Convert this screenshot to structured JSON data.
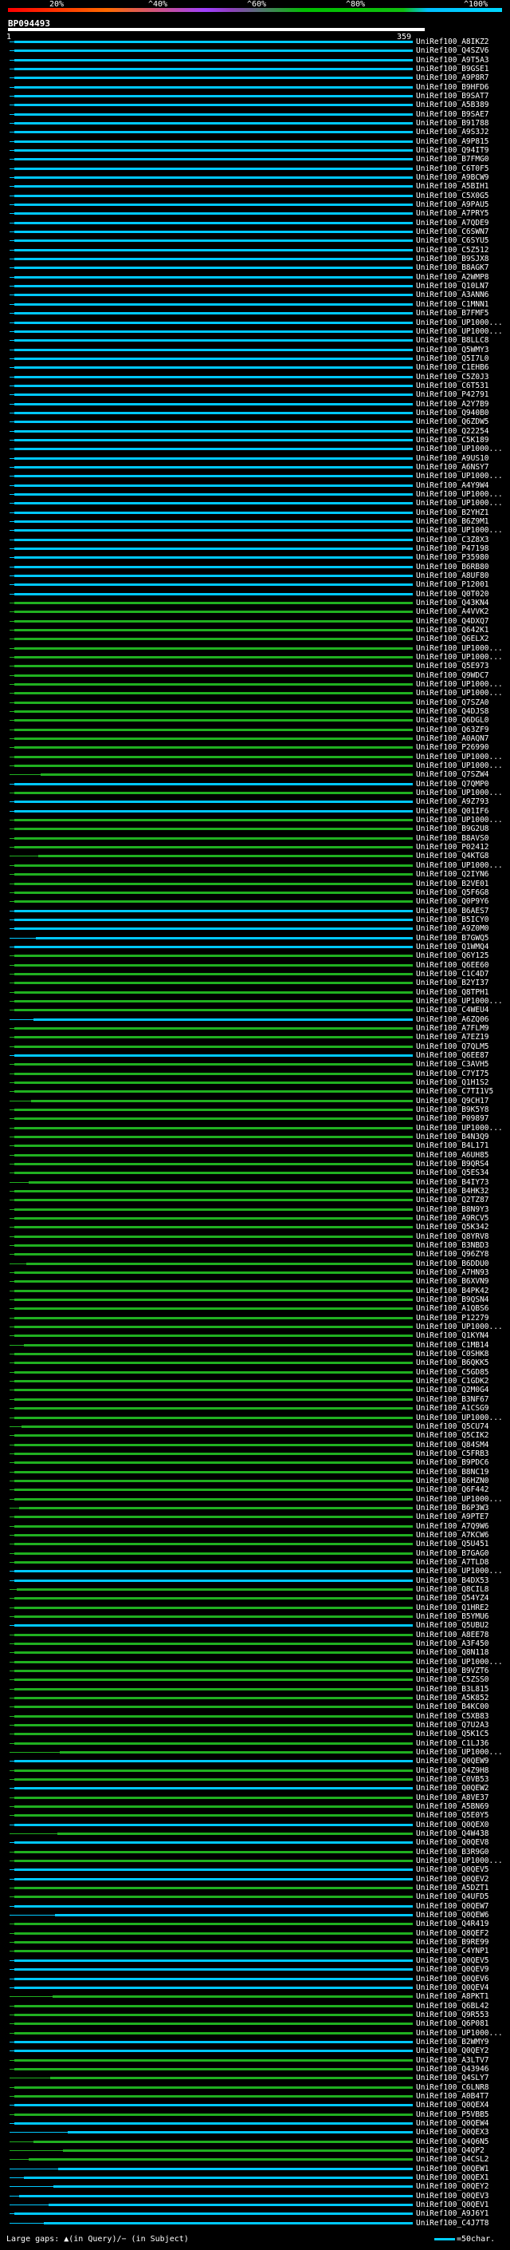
{
  "header": {
    "pct_labels": [
      "20%",
      "^40%",
      "^60%",
      "^80%",
      "^100%"
    ],
    "query_id": "BP094493",
    "tick_start": "1",
    "tick_end": "359"
  },
  "legend": {
    "text": "Large gaps: ▲(in Query)/− (in Subject)",
    "scale": "=50char."
  },
  "colors": {
    "cyan": "#00c8ff",
    "green": "#20b020"
  },
  "hits": [
    [
      "UniRef100_A8IKZ2",
      "c"
    ],
    [
      "UniRef100_Q4SZV6",
      "c"
    ],
    [
      "UniRef100_A9T5A3",
      "c"
    ],
    [
      "UniRef100_B9GSE1",
      "c"
    ],
    [
      "UniRef100_A9P8R7",
      "c"
    ],
    [
      "UniRef100_B9HFD6",
      "c"
    ],
    [
      "UniRef100_B9SAT7",
      "c"
    ],
    [
      "UniRef100_A5B389",
      "c"
    ],
    [
      "UniRef100_B9SAE7",
      "c"
    ],
    [
      "UniRef100_B91788",
      "c"
    ],
    [
      "UniRef100_A9S3J2",
      "c"
    ],
    [
      "UniRef100_A9P815",
      "c"
    ],
    [
      "UniRef100_Q94IT9",
      "c"
    ],
    [
      "UniRef100_B7FMG0",
      "c"
    ],
    [
      "UniRef100_C6T0F5",
      "c"
    ],
    [
      "UniRef100_A9BCW9",
      "c"
    ],
    [
      "UniRef100_A5BIH1",
      "c"
    ],
    [
      "UniRef100_C5X0G5",
      "c"
    ],
    [
      "UniRef100_A9PAU5",
      "c"
    ],
    [
      "UniRef100_A7PRY5",
      "c"
    ],
    [
      "UniRef100_A7QDE9",
      "c"
    ],
    [
      "UniRef100_C6SWN7",
      "c"
    ],
    [
      "UniRef100_C6SYU5",
      "c"
    ],
    [
      "UniRef100_C5Z512",
      "c"
    ],
    [
      "UniRef100_B9SJX8",
      "c"
    ],
    [
      "UniRef100_B8AGK7",
      "c"
    ],
    [
      "UniRef100_A2WMP8",
      "c"
    ],
    [
      "UniRef100_Q10LN7",
      "c"
    ],
    [
      "UniRef100_A3ANN6",
      "c"
    ],
    [
      "UniRef100_C1MNN1",
      "c"
    ],
    [
      "UniRef100_B7FMF5",
      "c"
    ],
    [
      "UniRef100_UP1000...",
      "c"
    ],
    [
      "UniRef100_UP1000...",
      "c"
    ],
    [
      "UniRef100_B8LLC8",
      "c"
    ],
    [
      "UniRef100_Q5WMY3",
      "c"
    ],
    [
      "UniRef100_Q5I7L0",
      "c"
    ],
    [
      "UniRef100_C1EHB6",
      "c"
    ],
    [
      "UniRef100_C5Z0J3",
      "c"
    ],
    [
      "UniRef100_C6T531",
      "c"
    ],
    [
      "UniRef100_P42791",
      "c"
    ],
    [
      "UniRef100_A2Y7B9",
      "c"
    ],
    [
      "UniRef100_Q940B0",
      "c"
    ],
    [
      "UniRef100_Q6ZDW5",
      "c"
    ],
    [
      "UniRef100_Q22254",
      "c"
    ],
    [
      "UniRef100_C5K189",
      "c"
    ],
    [
      "UniRef100_UP1000...",
      "c"
    ],
    [
      "UniRef100_A9US10",
      "c"
    ],
    [
      "UniRef100_A6NSY7",
      "c"
    ],
    [
      "UniRef100_UP1000...",
      "c"
    ],
    [
      "UniRef100_A4Y9W4",
      "c"
    ],
    [
      "UniRef100_UP1000...",
      "c"
    ],
    [
      "UniRef100_UP1000...",
      "c"
    ],
    [
      "UniRef100_B2YHZ1",
      "c"
    ],
    [
      "UniRef100_B6Z9M1",
      "c"
    ],
    [
      "UniRef100_UP1000...",
      "c"
    ],
    [
      "UniRef100_C3Z8X3",
      "c"
    ],
    [
      "UniRef100_P47198",
      "c"
    ],
    [
      "UniRef100_P35980",
      "c"
    ],
    [
      "UniRef100_B6RB80",
      "c"
    ],
    [
      "UniRef100_A8UF80",
      "c"
    ],
    [
      "UniRef100_P12001",
      "c"
    ],
    [
      "UniRef100_Q0T020",
      "c"
    ],
    [
      "UniRef100_Q43KN4",
      "g"
    ],
    [
      "UniRef100_A4VVK2",
      "g"
    ],
    [
      "UniRef100_Q4DXQ7",
      "g"
    ],
    [
      "UniRef100_Q642K1",
      "g"
    ],
    [
      "UniRef100_Q6ELX2",
      "g"
    ],
    [
      "UniRef100_UP1000...",
      "g"
    ],
    [
      "UniRef100_UP1000...",
      "g"
    ],
    [
      "UniRef100_Q5E973",
      "g"
    ],
    [
      "UniRef100_Q9WDC7",
      "g"
    ],
    [
      "UniRef100_UP1000...",
      "g"
    ],
    [
      "UniRef100_UP1000...",
      "g"
    ],
    [
      "UniRef100_Q7SZA0",
      "g"
    ],
    [
      "UniRef100_Q4DJS8",
      "g"
    ],
    [
      "UniRef100_Q6DGL0",
      "g"
    ],
    [
      "UniRef100_Q63ZF9",
      "g"
    ],
    [
      "UniRef100_A0AQN7",
      "g"
    ],
    [
      "UniRef100_P26990",
      "g"
    ],
    [
      "UniRef100_UP1000...",
      "g"
    ],
    [
      "UniRef100_UP1000...",
      "g"
    ],
    [
      "UniRef100_Q7SZW4",
      "g"
    ],
    [
      "UniRef100_Q7QMP0",
      "c"
    ],
    [
      "UniRef100_UP1000...",
      "g"
    ],
    [
      "UniRef100_A9Z793",
      "c"
    ],
    [
      "UniRef100_Q01IF6",
      "c"
    ],
    [
      "UniRef100_UP1000...",
      "g"
    ],
    [
      "UniRef100_B9G2U8",
      "g"
    ],
    [
      "UniRef100_B8AVS0",
      "g"
    ],
    [
      "UniRef100_P02412",
      "g"
    ],
    [
      "UniRef100_Q4KTG8",
      "g"
    ],
    [
      "UniRef100_UP1000...",
      "g"
    ],
    [
      "UniRef100_Q2IYN6",
      "g"
    ],
    [
      "UniRef100_B2VE01",
      "g"
    ],
    [
      "UniRef100_Q5F6G8",
      "g"
    ],
    [
      "UniRef100_Q0P9Y6",
      "g"
    ],
    [
      "UniRef100_B6AES7",
      "c"
    ],
    [
      "UniRef100_B5ICY0",
      "c"
    ],
    [
      "UniRef100_A9Z0M0",
      "c"
    ],
    [
      "UniRef100_B7GWQ5",
      "c"
    ],
    [
      "UniRef100_Q1WMQ4",
      "c"
    ],
    [
      "UniRef100_Q6Y125",
      "g"
    ],
    [
      "UniRef100_Q6EE60",
      "g"
    ],
    [
      "UniRef100_C1C4D7",
      "g"
    ],
    [
      "UniRef100_B2YI37",
      "g"
    ],
    [
      "UniRef100_Q8TPH1",
      "g"
    ],
    [
      "UniRef100_UP1000...",
      "g"
    ],
    [
      "UniRef100_C4WEU4",
      "g"
    ],
    [
      "UniRef100_A6ZQ06",
      "c"
    ],
    [
      "UniRef100_A7FLM9",
      "g"
    ],
    [
      "UniRef100_A7EZ19",
      "g"
    ],
    [
      "UniRef100_Q7QLM5",
      "g"
    ],
    [
      "UniRef100_Q6EE87",
      "c"
    ],
    [
      "UniRef100_C3AVH5",
      "g"
    ],
    [
      "UniRef100_C7YI75",
      "g"
    ],
    [
      "UniRef100_Q1H1S2",
      "g"
    ],
    [
      "UniRef100_C7TI1V5",
      "g"
    ],
    [
      "UniRef100_Q9CH17",
      "g"
    ],
    [
      "UniRef100_B9K5Y8",
      "g"
    ],
    [
      "UniRef100_P09897",
      "g"
    ],
    [
      "UniRef100_UP1000...",
      "g"
    ],
    [
      "UniRef100_B4N3Q9",
      "g"
    ],
    [
      "UniRef100_B4L171",
      "g"
    ],
    [
      "UniRef100_A6UH85",
      "g"
    ],
    [
      "UniRef100_B9QRS4",
      "g"
    ],
    [
      "UniRef100_Q5ES34",
      "g"
    ],
    [
      "UniRef100_B4IY73",
      "g"
    ],
    [
      "UniRef100_B4HK32",
      "g"
    ],
    [
      "UniRef100_Q2TZ87",
      "g"
    ],
    [
      "UniRef100_B8N9Y3",
      "g"
    ],
    [
      "UniRef100_A9RCV5",
      "g"
    ],
    [
      "UniRef100_Q5K342",
      "g"
    ],
    [
      "UniRef100_Q8YRV8",
      "g"
    ],
    [
      "UniRef100_B3NBD3",
      "g"
    ],
    [
      "UniRef100_Q96ZY8",
      "g"
    ],
    [
      "UniRef100_B6DDU0",
      "g"
    ],
    [
      "UniRef100_A7HN93",
      "g"
    ],
    [
      "UniRef100_B6XVN9",
      "g"
    ],
    [
      "UniRef100_B4PK42",
      "g"
    ],
    [
      "UniRef100_B9QSN4",
      "g"
    ],
    [
      "UniRef100_A1QBS6",
      "g"
    ],
    [
      "UniRef100_P12279",
      "g"
    ],
    [
      "UniRef100_UP1000...",
      "g"
    ],
    [
      "UniRef100_Q1KYN4",
      "g"
    ],
    [
      "UniRef100_C1MB14",
      "g"
    ],
    [
      "UniRef100_C0SHK8",
      "g"
    ],
    [
      "UniRef100_B6QKK5",
      "g"
    ],
    [
      "UniRef100_C5GD85",
      "g"
    ],
    [
      "UniRef100_C1GDK2",
      "g"
    ],
    [
      "UniRef100_Q2M0G4",
      "g"
    ],
    [
      "UniRef100_B3NF67",
      "g"
    ],
    [
      "UniRef100_A1CSG9",
      "g"
    ],
    [
      "UniRef100_UP1000...",
      "g"
    ],
    [
      "UniRef100_Q5CU74",
      "g"
    ],
    [
      "UniRef100_Q5CIK2",
      "g"
    ],
    [
      "UniRef100_Q84SM4",
      "g"
    ],
    [
      "UniRef100_C5FRB3",
      "g"
    ],
    [
      "UniRef100_B9PDC6",
      "g"
    ],
    [
      "UniRef100_B8NC19",
      "g"
    ],
    [
      "UniRef100_B6HZN0",
      "g"
    ],
    [
      "UniRef100_Q6F442",
      "g"
    ],
    [
      "UniRef100_UP1000...",
      "g"
    ],
    [
      "UniRef100_B6P3W3",
      "g"
    ],
    [
      "UniRef100_A9PTE7",
      "g"
    ],
    [
      "UniRef100_A7Q9W6",
      "g"
    ],
    [
      "UniRef100_A7KCW6",
      "g"
    ],
    [
      "UniRef100_Q5U451",
      "g"
    ],
    [
      "UniRef100_B7GAG0",
      "g"
    ],
    [
      "UniRef100_A7TLD8",
      "g"
    ],
    [
      "UniRef100_UP1000...",
      "c"
    ],
    [
      "UniRef100_B4DX53",
      "c"
    ],
    [
      "UniRef100_Q8CIL8",
      "g"
    ],
    [
      "UniRef100_Q54YZ4",
      "g"
    ],
    [
      "UniRef100_Q1HRE2",
      "g"
    ],
    [
      "UniRef100_B5YMU6",
      "g"
    ],
    [
      "UniRef100_Q5UBU2",
      "c"
    ],
    [
      "UniRef100_A8EE78",
      "g"
    ],
    [
      "UniRef100_A3F450",
      "g"
    ],
    [
      "UniRef100_Q8N118",
      "g"
    ],
    [
      "UniRef100_UP1000...",
      "g"
    ],
    [
      "UniRef100_B9VZT6",
      "g"
    ],
    [
      "UniRef100_C5ZSS0",
      "g"
    ],
    [
      "UniRef100_B3L815",
      "g"
    ],
    [
      "UniRef100_A5K852",
      "g"
    ],
    [
      "UniRef100_B4KC00",
      "g"
    ],
    [
      "UniRef100_C5XB83",
      "g"
    ],
    [
      "UniRef100_Q7U2A3",
      "g"
    ],
    [
      "UniRef100_Q5K1C5",
      "g"
    ],
    [
      "UniRef100_C1LJ36",
      "g"
    ],
    [
      "UniRef100_UP1000...",
      "g"
    ],
    [
      "UniRef100_Q0QEW9",
      "c"
    ],
    [
      "UniRef100_Q4Z9H8",
      "g"
    ],
    [
      "UniRef100_C0VB53",
      "g"
    ],
    [
      "UniRef100_Q0QEW2",
      "c"
    ],
    [
      "UniRef100_A8VE37",
      "g"
    ],
    [
      "UniRef100_A5BN69",
      "g"
    ],
    [
      "UniRef100_Q5E0Y5",
      "g"
    ],
    [
      "UniRef100_Q0QEX0",
      "c"
    ],
    [
      "UniRef100_Q4W438",
      "g"
    ],
    [
      "UniRef100_Q0QEV8",
      "c"
    ],
    [
      "UniRef100_B3R9G0",
      "g"
    ],
    [
      "UniRef100_UP1000...",
      "g"
    ],
    [
      "UniRef100_Q0QEV5",
      "c"
    ],
    [
      "UniRef100_Q0QEV2",
      "c"
    ],
    [
      "UniRef100_A5DZT1",
      "g"
    ],
    [
      "UniRef100_Q4UFD5",
      "g"
    ],
    [
      "UniRef100_Q0QEW7",
      "c"
    ],
    [
      "UniRef100_Q0QEW6",
      "c"
    ],
    [
      "UniRef100_Q4R419",
      "g"
    ],
    [
      "UniRef100_Q8QEF2",
      "g"
    ],
    [
      "UniRef100_B9RE99",
      "g"
    ],
    [
      "UniRef100_C4YNP1",
      "g"
    ],
    [
      "UniRef100_Q0QEV5",
      "c"
    ],
    [
      "UniRef100_Q0QEV9",
      "c"
    ],
    [
      "UniRef100_Q0QEV6",
      "c"
    ],
    [
      "UniRef100_Q0QEV4",
      "c"
    ],
    [
      "UniRef100_A8PKT1",
      "g"
    ],
    [
      "UniRef100_Q6BL42",
      "g"
    ],
    [
      "UniRef100_Q9R553",
      "g"
    ],
    [
      "UniRef100_Q6P081",
      "g"
    ],
    [
      "UniRef100_UP1000...",
      "g"
    ],
    [
      "UniRef100_B2WMY9",
      "c"
    ],
    [
      "UniRef100_Q0QEY2",
      "c"
    ],
    [
      "UniRef100_A3LTV7",
      "g"
    ],
    [
      "UniRef100_Q43946",
      "g"
    ],
    [
      "UniRef100_Q4SLY7",
      "g"
    ],
    [
      "UniRef100_C6LNR8",
      "g"
    ],
    [
      "UniRef100_A0B4T7",
      "g"
    ],
    [
      "UniRef100_Q0QEX4",
      "c"
    ],
    [
      "UniRef100_P5VBB5",
      "g"
    ],
    [
      "UniRef100_Q0QEW4",
      "c"
    ],
    [
      "UniRef100_Q0QEX3",
      "c"
    ],
    [
      "UniRef100_Q4Q6N5",
      "g"
    ],
    [
      "UniRef100_Q4QP2",
      "g"
    ],
    [
      "UniRef100_Q4CSL2",
      "g"
    ],
    [
      "UniRef100_Q0QEW1",
      "c"
    ],
    [
      "UniRef100_Q0QEX1",
      "c"
    ],
    [
      "UniRef100_Q0QEY2",
      "c"
    ],
    [
      "UniRef100_Q0QEV3",
      "c"
    ],
    [
      "UniRef100_Q0QEV1",
      "c"
    ],
    [
      "UniRef100_A9J6Y1",
      "c"
    ],
    [
      "UniRef100_C4J7T8",
      "c"
    ]
  ]
}
